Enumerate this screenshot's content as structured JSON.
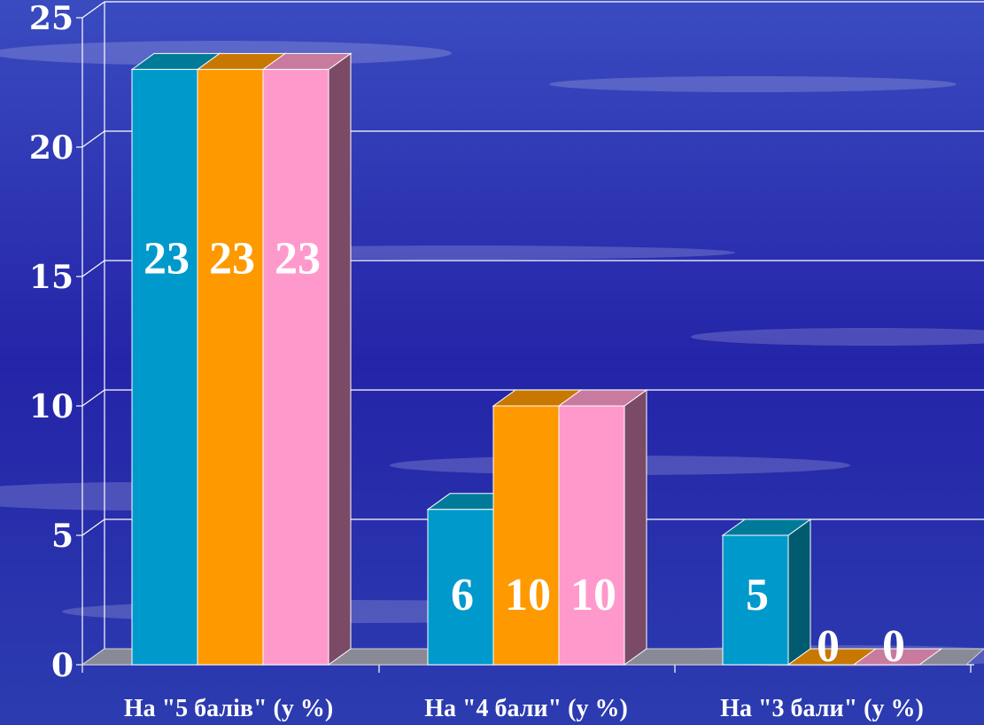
{
  "chart_data": {
    "type": "bar",
    "categories": [
      "На \"5 балів\" (у %)",
      "На \"4 бали\" (у %)",
      "На \"3 бали\" (у %)"
    ],
    "series": [
      {
        "values": [
          23,
          6,
          5
        ],
        "color": "#0099cc",
        "top_color": "#007a99",
        "side_color": "#005a70"
      },
      {
        "values": [
          23,
          10,
          0
        ],
        "color": "#ff9900",
        "top_color": "#c87800",
        "side_color": "#a06000"
      },
      {
        "values": [
          23,
          10,
          0
        ],
        "color": "#ff99cc",
        "top_color": "#c87a9f",
        "side_color": "#7a4a66"
      }
    ],
    "y_ticks": [
      "0",
      "5",
      "10",
      "15",
      "20",
      "25"
    ],
    "ylim": [
      0,
      25
    ],
    "grid": true,
    "legend": "none",
    "title": "",
    "xlabel": "",
    "ylabel": ""
  },
  "colors": {
    "background": "#2a2aa8",
    "grid": "#ffffff",
    "floor": "#8a8a96",
    "text": "#ffffff"
  }
}
